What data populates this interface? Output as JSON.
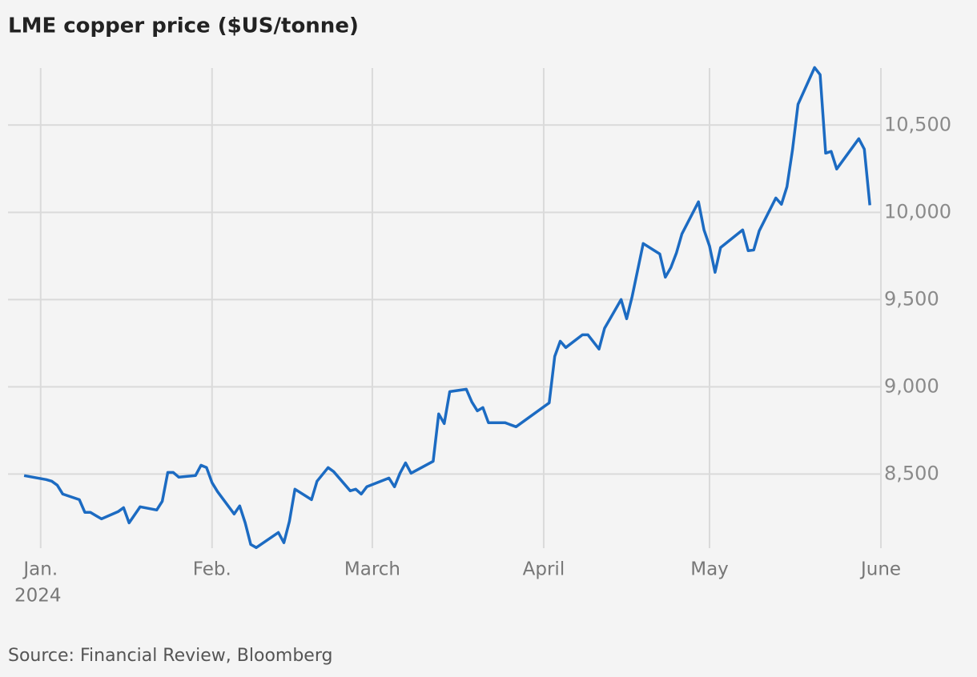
{
  "chart_data": {
    "type": "line",
    "title": "LME copper price ($US/tonne)",
    "source": "Source: Financial Review, Bloomberg",
    "x_year_label": "2024",
    "x": [
      -3,
      1,
      2,
      3,
      4,
      7,
      8,
      9,
      10,
      11,
      14,
      15,
      16,
      18,
      21,
      22,
      23,
      24,
      25,
      28,
      29,
      30,
      31,
      32,
      35,
      36,
      37,
      38,
      39,
      43,
      44,
      45,
      46,
      49,
      50,
      52,
      53,
      56,
      57,
      58,
      59,
      63,
      64,
      65,
      66,
      67,
      71,
      72,
      73,
      74,
      77,
      78,
      79,
      80,
      81,
      84,
      86,
      92,
      93,
      94,
      95,
      98,
      99,
      101,
      102,
      105,
      106,
      107,
      109,
      112,
      113,
      114,
      115,
      116,
      119,
      120,
      121,
      122,
      123,
      127,
      128,
      129,
      130,
      133,
      134,
      135,
      136,
      137,
      140,
      141,
      142,
      143,
      144,
      148,
      149,
      150
    ],
    "values": [
      8491,
      8468,
      8459,
      8436,
      8385,
      8353,
      8280,
      8280,
      8261,
      8243,
      8284,
      8307,
      8220,
      8312,
      8294,
      8344,
      8509,
      8509,
      8482,
      8491,
      8550,
      8537,
      8450,
      8399,
      8271,
      8317,
      8220,
      8096,
      8078,
      8165,
      8106,
      8229,
      8413,
      8353,
      8459,
      8537,
      8514,
      8404,
      8413,
      8385,
      8427,
      8477,
      8427,
      8505,
      8564,
      8505,
      8573,
      8844,
      8789,
      8972,
      8986,
      8913,
      8862,
      8881,
      8794,
      8794,
      8771,
      8908,
      9174,
      9261,
      9225,
      9298,
      9298,
      9216,
      9335,
      9500,
      9390,
      9518,
      9821,
      9761,
      9628,
      9683,
      9766,
      9876,
      10060,
      9899,
      9807,
      9656,
      9798,
      9899,
      9780,
      9784,
      9894,
      10082,
      10046,
      10147,
      10358,
      10619,
      10830,
      10789,
      10339,
      10349,
      10248,
      10422,
      10362,
      10041
    ],
    "color": "#1c6bc2",
    "xlim": [
      -3.3,
      152
    ],
    "xticks": [
      {
        "value": 0,
        "label": "Jan."
      },
      {
        "value": 31,
        "label": "Feb."
      },
      {
        "value": 60,
        "label": "March"
      },
      {
        "value": 91,
        "label": "April"
      },
      {
        "value": 121,
        "label": "May"
      },
      {
        "value": 152,
        "label": "June"
      }
    ],
    "ylim": [
      8075,
      10850
    ],
    "yticks": [
      {
        "value": 8500,
        "label": "8,500"
      },
      {
        "value": 9000,
        "label": "9,000"
      },
      {
        "value": 9500,
        "label": "9,500"
      },
      {
        "value": 10000,
        "label": "10,000"
      },
      {
        "value": 10500,
        "label": "10,500"
      }
    ],
    "grid": true
  }
}
